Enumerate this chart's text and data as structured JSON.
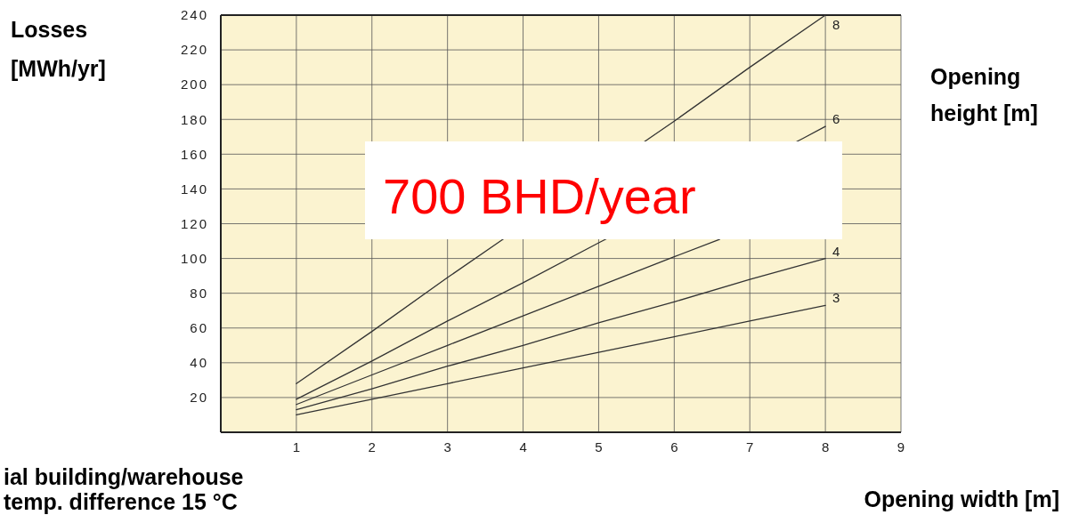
{
  "chart_data": {
    "type": "line",
    "ylabel": "Losses [MWh/yr]",
    "xlabel": "Opening width [m]",
    "legend_title": "Opening height [m]",
    "x": [
      1,
      2,
      3,
      4,
      5,
      6,
      7,
      8
    ],
    "series": [
      {
        "name": "8",
        "color": "#333333",
        "x": [
          1,
          2,
          3,
          3.7,
          5.7,
          6,
          7,
          8
        ],
        "values": [
          28,
          58,
          89,
          110,
          170,
          179,
          210,
          240
        ]
      },
      {
        "name": "6",
        "color": "#333333",
        "x": [
          1,
          2,
          3,
          4,
          5,
          7.7,
          8
        ],
        "values": [
          19,
          41,
          64,
          86,
          109,
          169,
          176
        ]
      },
      {
        "color": "#333333",
        "x": [
          1,
          2,
          3,
          4,
          5,
          6,
          6.6
        ],
        "values": [
          16,
          33,
          50,
          67,
          84,
          101,
          111
        ]
      },
      {
        "name": "4",
        "color": "#333333",
        "values": [
          13,
          25,
          38,
          50,
          63,
          75,
          88,
          100
        ]
      },
      {
        "name": "3",
        "color": "#333333",
        "values": [
          10,
          19,
          28,
          37,
          46,
          55,
          64,
          73
        ]
      }
    ],
    "xlim": [
      0,
      9
    ],
    "xticks": [
      1,
      2,
      3,
      4,
      5,
      6,
      7,
      8,
      9
    ],
    "ylim": [
      0,
      240
    ],
    "yticks": [
      20,
      40,
      60,
      80,
      100,
      120,
      140,
      160,
      180,
      200,
      220,
      240
    ],
    "grid": true,
    "legend": "right",
    "marker": "none",
    "line_style": "solid",
    "annotations": [
      "700 BHD/year",
      "ial building/warehouse",
      "temp. difference 15 °C"
    ]
  }
}
